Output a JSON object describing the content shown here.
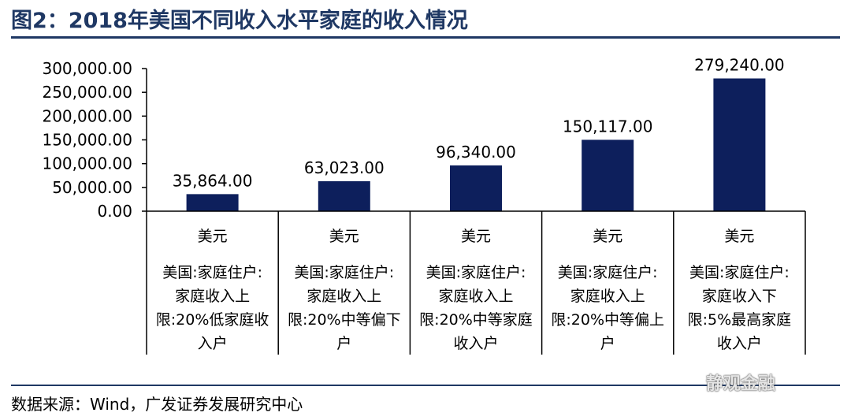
{
  "figure": {
    "title": "图2：2018年美国不同收入水平家庭的收入情况",
    "source": "数据来源：Wind，广发证券发展研究中心",
    "watermark": "静观金融"
  },
  "colors": {
    "bar": "#0d1f5c",
    "title": "#1f3864",
    "axis": "#000000"
  },
  "chart_data": {
    "type": "bar",
    "categories": [
      {
        "line1": "美元",
        "line2": [
          "美国:家庭住户:",
          "家庭收入上",
          "限:20%低家庭收",
          "入户"
        ]
      },
      {
        "line1": "美元",
        "line2": [
          "美国:家庭住户:",
          "家庭收入上",
          "限:20%中等偏下",
          "户"
        ]
      },
      {
        "line1": "美元",
        "line2": [
          "美国:家庭住户:",
          "家庭收入上",
          "限:20%中等家庭",
          "收入户"
        ]
      },
      {
        "line1": "美元",
        "line2": [
          "美国:家庭住户:",
          "家庭收入上",
          "限:20%中等偏上",
          "户"
        ]
      },
      {
        "line1": "美元",
        "line2": [
          "美国:家庭住户:",
          "家庭收入下",
          "限:5%最高家庭",
          "收入户"
        ]
      }
    ],
    "values": [
      35864,
      63023,
      96340,
      150117,
      279240
    ],
    "value_labels": [
      "35,864.00",
      "63,023.00",
      "96,340.00",
      "150,117.00",
      "279,240.00"
    ],
    "ylim": [
      0,
      300000
    ],
    "yticks": [
      0,
      50000,
      100000,
      150000,
      200000,
      250000,
      300000
    ],
    "ytick_labels": [
      "0.00",
      "50,000.00",
      "100,000.00",
      "150,000.00",
      "200,000.00",
      "250,000.00",
      "300,000.00"
    ],
    "grid": false,
    "legend": "none"
  }
}
